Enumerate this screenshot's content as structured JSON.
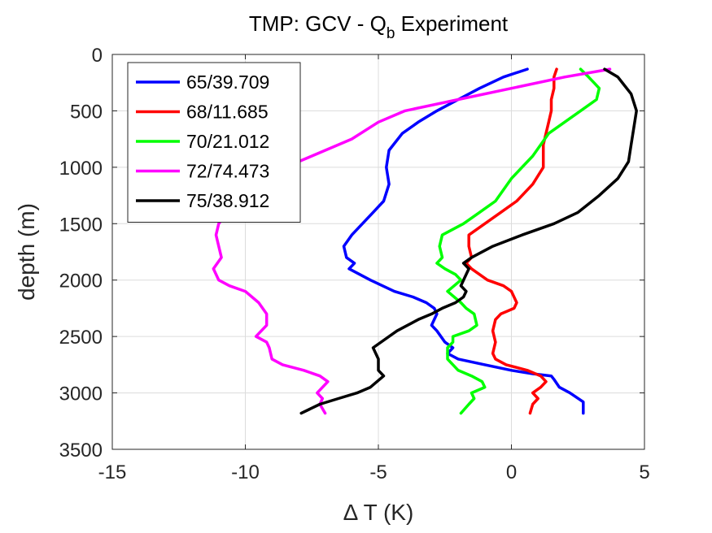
{
  "chart_data": {
    "type": "line",
    "title": "TMP: GCV - Q",
    "title_subscript": "b",
    "title_suffix": " Experiment",
    "xlabel": "Δ T (K)",
    "ylabel": "depth (m)",
    "xlim": [
      -15,
      5
    ],
    "ylim": [
      0,
      3500
    ],
    "y_reversed": true,
    "xticks": [
      -15,
      -10,
      -5,
      0,
      5
    ],
    "yticks": [
      0,
      500,
      1000,
      1500,
      2000,
      2500,
      3000,
      3500
    ],
    "xtick_labels": [
      "-15",
      "-10",
      "-5",
      "0",
      "5"
    ],
    "ytick_labels": [
      "0",
      "500",
      "1000",
      "1500",
      "2000",
      "2500",
      "3000",
      "3500"
    ],
    "grid": true,
    "legend_position": "top-left",
    "series": [
      {
        "name": "65/39.709",
        "color": "#0000ff",
        "x": [
          0.6,
          -0.3,
          -1.2,
          -2.0,
          -2.8,
          -3.5,
          -4.1,
          -4.6,
          -4.7,
          -4.6,
          -4.8,
          -5.2,
          -5.6,
          -6.0,
          -6.3,
          -6.2,
          -5.9,
          -6.1,
          -5.3,
          -4.4,
          -3.7,
          -3.2,
          -2.9,
          -2.8,
          -3.0,
          -2.8,
          -2.5,
          -2.2,
          -2.4,
          -2.0,
          -1.0,
          0.0,
          0.8,
          1.5,
          1.6,
          1.8,
          2.2,
          2.7,
          2.7
        ],
        "y": [
          130,
          200,
          300,
          400,
          500,
          600,
          700,
          850,
          1000,
          1150,
          1300,
          1400,
          1500,
          1600,
          1700,
          1800,
          1850,
          1900,
          2000,
          2100,
          2150,
          2200,
          2250,
          2300,
          2400,
          2450,
          2550,
          2600,
          2650,
          2700,
          2750,
          2800,
          2830,
          2850,
          2880,
          2950,
          3000,
          3080,
          3180
        ]
      },
      {
        "name": "68/11.685",
        "color": "#ff0000",
        "x": [
          1.7,
          1.6,
          1.6,
          1.5,
          1.5,
          1.4,
          1.3,
          1.2,
          1.2,
          0.8,
          0.2,
          -0.4,
          -1.0,
          -1.6,
          -1.6,
          -1.5,
          -1.7,
          -1.5,
          -0.9,
          -0.3,
          0.0,
          0.2,
          0.1,
          -0.4,
          -0.6,
          -0.7,
          -0.6,
          -0.7,
          -0.6,
          -0.2,
          0.6,
          1.1,
          1.3,
          1.1,
          0.8,
          1.0,
          0.8,
          0.7
        ],
        "y": [
          130,
          200,
          300,
          400,
          500,
          600,
          700,
          800,
          1000,
          1150,
          1300,
          1400,
          1500,
          1600,
          1700,
          1800,
          1850,
          1900,
          2000,
          2050,
          2100,
          2200,
          2250,
          2300,
          2350,
          2450,
          2550,
          2650,
          2700,
          2750,
          2800,
          2850,
          2900,
          2950,
          3000,
          3050,
          3100,
          3180
        ]
      },
      {
        "name": "70/21.012",
        "color": "#00ff00",
        "x": [
          2.6,
          2.9,
          3.1,
          3.3,
          3.2,
          2.6,
          2.0,
          1.4,
          0.8,
          0.0,
          -0.6,
          -1.2,
          -1.8,
          -2.6,
          -2.7,
          -2.6,
          -2.8,
          -2.5,
          -2.1,
          -1.9,
          -2.4,
          -1.9,
          -1.7,
          -1.4,
          -1.3,
          -1.6,
          -2.2,
          -2.2,
          -2.4,
          -2.4,
          -2.0,
          -1.5,
          -1.1,
          -1.0,
          -1.5,
          -1.4,
          -1.6,
          -1.9
        ],
        "y": [
          130,
          200,
          250,
          300,
          400,
          500,
          600,
          700,
          900,
          1100,
          1300,
          1400,
          1500,
          1600,
          1700,
          1800,
          1850,
          1900,
          1950,
          2000,
          2100,
          2200,
          2250,
          2300,
          2400,
          2450,
          2500,
          2550,
          2600,
          2700,
          2800,
          2850,
          2900,
          2950,
          3000,
          3050,
          3100,
          3180
        ]
      },
      {
        "name": "72/74.473",
        "color": "#ff00ff",
        "x": [
          3.7,
          2.0,
          0.0,
          -2.0,
          -4.0,
          -5.0,
          -6.0,
          -7.5,
          -9.0,
          -10.2,
          -11.0,
          -11.1,
          -11.0,
          -10.9,
          -11.2,
          -11.0,
          -10.6,
          -10.0,
          -9.5,
          -9.2,
          -9.2,
          -9.6,
          -9.2,
          -9.1,
          -9.0,
          -8.6,
          -7.8,
          -7.2,
          -6.9,
          -7.3,
          -7.1,
          -7.2,
          -7.0
        ],
        "y": [
          130,
          200,
          300,
          400,
          500,
          600,
          750,
          900,
          1050,
          1250,
          1500,
          1600,
          1700,
          1800,
          1900,
          2000,
          2050,
          2100,
          2200,
          2300,
          2400,
          2500,
          2550,
          2600,
          2700,
          2750,
          2800,
          2850,
          2900,
          3000,
          3050,
          3100,
          3180
        ]
      },
      {
        "name": "75/38.912",
        "color": "#000000",
        "x": [
          3.5,
          4.0,
          4.5,
          4.7,
          4.6,
          4.5,
          4.4,
          4.0,
          3.3,
          2.5,
          1.6,
          0.4,
          -0.7,
          -1.5,
          -1.8,
          -1.6,
          -1.7,
          -1.9,
          -1.7,
          -1.8,
          -2.1,
          -2.6,
          -3.0,
          -3.5,
          -4.3,
          -5.2,
          -5.0,
          -5.0,
          -4.8,
          -5.3,
          -5.8,
          -6.5,
          -7.2,
          -7.9
        ],
        "y": [
          130,
          200,
          350,
          500,
          650,
          800,
          950,
          1100,
          1250,
          1400,
          1500,
          1600,
          1700,
          1800,
          1850,
          1900,
          1950,
          2050,
          2100,
          2150,
          2200,
          2250,
          2300,
          2350,
          2450,
          2600,
          2700,
          2800,
          2850,
          2950,
          3000,
          3050,
          3100,
          3180
        ]
      }
    ]
  }
}
